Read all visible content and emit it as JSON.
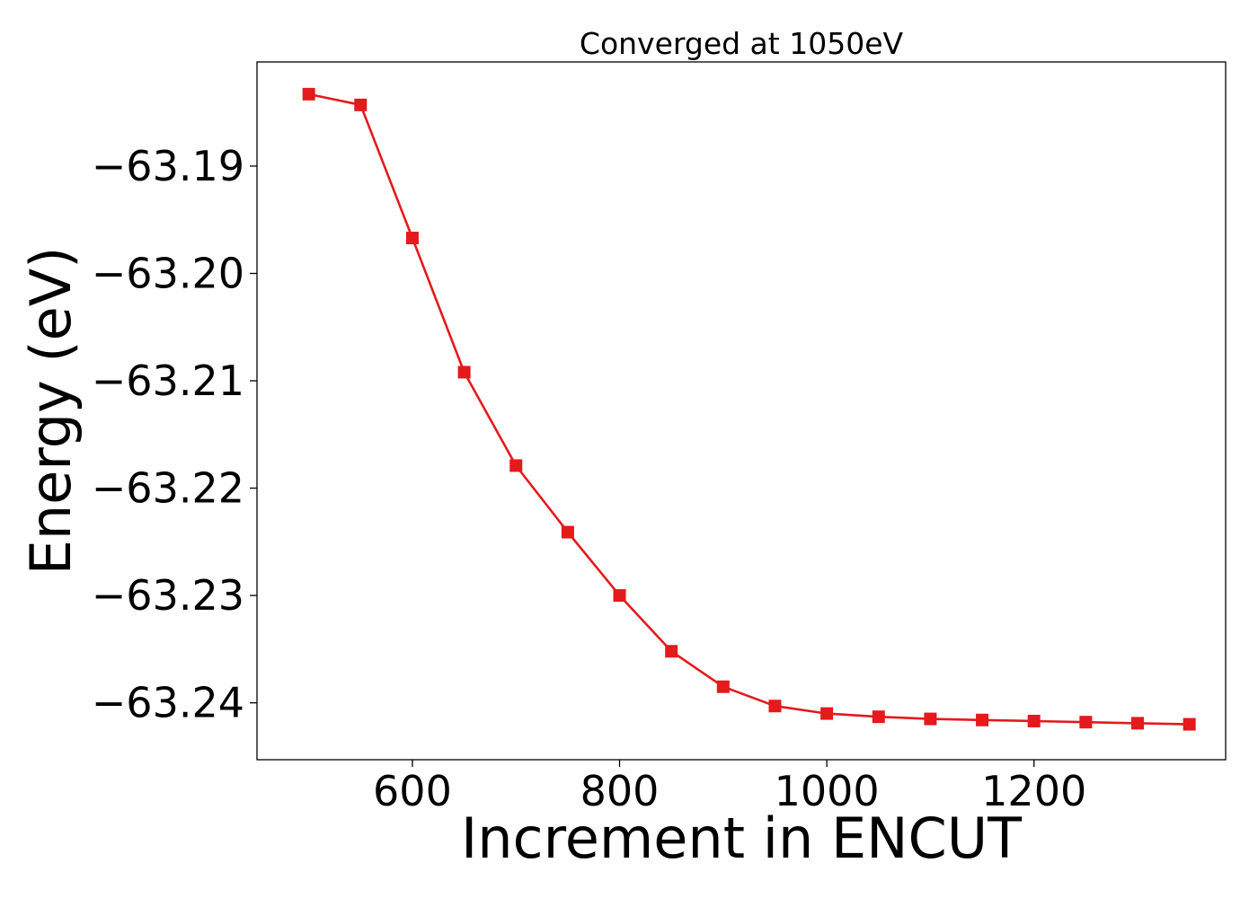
{
  "chart_data": {
    "type": "line",
    "title": "Converged at 1050eV",
    "xlabel": "Increment in ENCUT",
    "ylabel": "Energy (eV)",
    "xlim": [
      450,
      1385
    ],
    "ylim": [
      -63.2453,
      -63.1803
    ],
    "xticks": [
      600,
      800,
      1000,
      1200
    ],
    "xtick_labels": [
      "600",
      "800",
      "1000",
      "1200"
    ],
    "yticks": [
      -63.19,
      -63.2,
      -63.21,
      -63.22,
      -63.23,
      -63.24
    ],
    "ytick_labels": [
      "−63.19",
      "−63.20",
      "−63.21",
      "−63.22",
      "−63.23",
      "−63.24"
    ],
    "grid": false,
    "legend": "none",
    "series": [
      {
        "color": "#e41a1c",
        "marker": "square",
        "x": [
          500,
          550,
          600,
          650,
          700,
          750,
          800,
          850,
          900,
          950,
          1000,
          1050,
          1100,
          1150,
          1200,
          1250,
          1300,
          1350
        ],
        "y": [
          -63.1833,
          -63.1843,
          -63.1967,
          -63.2092,
          -63.2179,
          -63.2241,
          -63.23,
          -63.2352,
          -63.2385,
          -63.2403,
          -63.241,
          -63.2413,
          -63.2415,
          -63.2416,
          -63.2417,
          -63.2418,
          -63.2419,
          -63.242
        ]
      }
    ]
  }
}
